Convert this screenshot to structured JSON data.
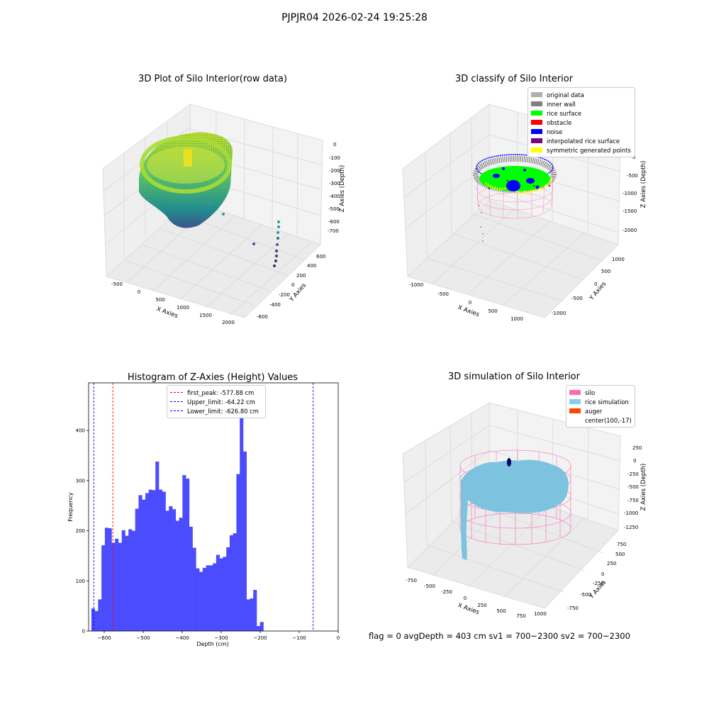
{
  "suptitle": "PJPJR04 2026-02-24 19:25:28",
  "footer": "flag = 0     avgDepth = 403 cm  sv1 = 700~2300  sv2 = 700~2300",
  "plot1": {
    "title": "3D Plot of Silo Interior(row data)",
    "xlabel": "X Axies",
    "ylabel": "Y Axies",
    "zlabel": "Z Axies (Depth)",
    "xticks": [
      "-500",
      "0",
      "500",
      "1000",
      "1500",
      "2000"
    ],
    "yticks": [
      "-600",
      "-400",
      "-200",
      "0",
      "200",
      "400",
      "600"
    ],
    "zticks": [
      "0",
      "-100",
      "-200",
      "-300",
      "-400",
      "-500",
      "-600",
      "-700"
    ]
  },
  "plot2": {
    "title": "3D classify of Silo Interior",
    "xlabel": "X Axies",
    "ylabel": "Y Axies",
    "zlabel": "Z Axies (Depth)",
    "xticks": [
      "-1000",
      "-500",
      "0",
      "500",
      "1000"
    ],
    "yticks": [
      "-1000",
      "-500",
      "0",
      "500",
      "1000"
    ],
    "zticks": [
      "0",
      "-500",
      "-1000",
      "-1500",
      "-2000"
    ],
    "legend": [
      {
        "label": "original data",
        "color": "#b0b0b0"
      },
      {
        "label": "inner wall",
        "color": "#808080"
      },
      {
        "label": "rice surface",
        "color": "#00ff00"
      },
      {
        "label": "obstacle",
        "color": "#ff0000"
      },
      {
        "label": "noise",
        "color": "#0000ff"
      },
      {
        "label": "interpolated rice surface",
        "color": "#800080"
      },
      {
        "label": "symmetric generated points",
        "color": "#ffff00"
      }
    ]
  },
  "plot4": {
    "title": "3D simulation of Silo Interior",
    "xlabel": "X Axies",
    "ylabel": "Y Axies",
    "zlabel": "Z Axies (Depth)",
    "xticks": [
      "-750",
      "-500",
      "-250",
      "0",
      "250",
      "500",
      "750",
      "1000"
    ],
    "yticks": [
      "-750",
      "-500",
      "-250",
      "0",
      "250",
      "500",
      "750"
    ],
    "zticks": [
      "250",
      "0",
      "-250",
      "-500",
      "-750",
      "-1000",
      "-1250"
    ],
    "legend": [
      {
        "label": "silo",
        "color": "#ff69b4"
      },
      {
        "label": "rice simulation",
        "color": "#87ceeb"
      },
      {
        "label": "auger",
        "color": "#ff4500"
      },
      {
        "label": "center(100,-17)",
        "color": ""
      }
    ]
  },
  "chart_data": [
    {
      "type": "bar",
      "title": "Histogram of Z-Axies (Height) Values",
      "xlabel": "Depth (cm)",
      "ylabel": "Frequency",
      "xlim": [
        -640,
        0
      ],
      "ylim": [
        0,
        495
      ],
      "xticks": [
        -600,
        -500,
        -400,
        -300,
        -200,
        -100,
        0
      ],
      "yticks": [
        0,
        100,
        200,
        300,
        400
      ],
      "bar_color": "#4c4cff",
      "bin_start": -633,
      "bin_width": 8.65,
      "values": [
        45,
        40,
        63,
        171,
        206,
        205,
        176,
        184,
        176,
        201,
        190,
        203,
        200,
        244,
        271,
        262,
        275,
        282,
        281,
        338,
        282,
        278,
        240,
        249,
        243,
        220,
        226,
        311,
        304,
        208,
        166,
        125,
        118,
        126,
        131,
        131,
        135,
        152,
        145,
        148,
        167,
        191,
        195,
        313,
        475,
        358,
        63,
        65,
        82,
        10,
        18
      ],
      "lines": [
        {
          "label": "first_peak: -577.88 cm",
          "x": -577.88,
          "color": "#ff0000"
        },
        {
          "label": "Upper_limit: -64.22 cm",
          "x": -64.22,
          "color": "#0000ff"
        },
        {
          "label": "Lower_limit: -626.80 cm",
          "x": -626.8,
          "color": "#0000ff"
        }
      ]
    }
  ]
}
